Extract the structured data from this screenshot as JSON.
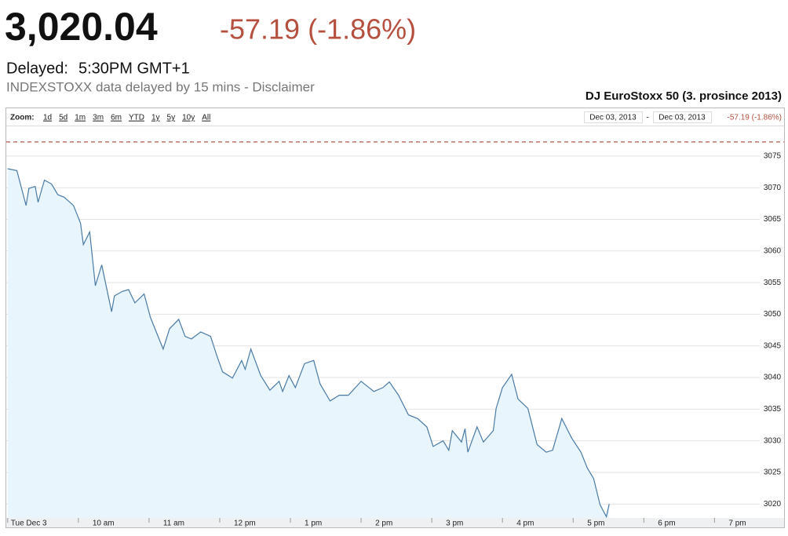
{
  "header": {
    "price": "3,020.04",
    "change": "-57.19 (-1.86%)",
    "delayed_label": "Delayed:",
    "delayed_time": "5:30PM GMT+1",
    "notice": "INDEXSTOXX data delayed by 15 mins - Disclaimer"
  },
  "chart_data": {
    "type": "line",
    "title": "DJ EuroStoxx 50 (3. prosince 2013)",
    "zoom_label": "Zoom:",
    "zoom_options": [
      "1d",
      "5d",
      "1m",
      "3m",
      "6m",
      "YTD",
      "1y",
      "5y",
      "10y",
      "All"
    ],
    "date_from": "Dec 03, 2013",
    "date_separator": "-",
    "date_to": "Dec 03, 2013",
    "range_change": "-57.19 (-1.86%)",
    "x": [
      9.0,
      9.13,
      9.26,
      9.3,
      9.39,
      9.43,
      9.52,
      9.62,
      9.71,
      9.8,
      9.93,
      10.03,
      10.07,
      10.16,
      10.24,
      10.33,
      10.47,
      10.51,
      10.62,
      10.71,
      10.8,
      10.93,
      11.02,
      11.2,
      11.29,
      11.42,
      11.51,
      11.6,
      11.73,
      11.87,
      11.96,
      12.04,
      12.18,
      12.31,
      12.36,
      12.44,
      12.58,
      12.71,
      12.84,
      12.89,
      12.98,
      13.07,
      13.2,
      13.33,
      13.42,
      13.56,
      13.69,
      13.82,
      14.0,
      14.18,
      14.31,
      14.4,
      14.53,
      14.67,
      14.8,
      14.93,
      15.02,
      15.16,
      15.24,
      15.29,
      15.42,
      15.47,
      15.51,
      15.64,
      15.73,
      15.87,
      15.91,
      16.0,
      16.13,
      16.22,
      16.36,
      16.49,
      16.62,
      16.71,
      16.84,
      16.98,
      17.11,
      17.2,
      17.29,
      17.38,
      17.47,
      17.51
    ],
    "values": [
      3073.0,
      3072.7,
      3067.2,
      3069.9,
      3070.2,
      3067.7,
      3071.2,
      3070.6,
      3068.9,
      3068.5,
      3067.2,
      3064.4,
      3061.0,
      3063.0,
      3054.5,
      3057.8,
      3050.4,
      3052.9,
      3053.6,
      3053.9,
      3051.8,
      3053.2,
      3049.5,
      3044.5,
      3047.7,
      3049.2,
      3046.5,
      3046.1,
      3047.2,
      3046.5,
      3043.4,
      3040.9,
      3039.9,
      3042.7,
      3041.3,
      3044.5,
      3040.3,
      3038.0,
      3039.4,
      3037.8,
      3040.3,
      3038.4,
      3042.2,
      3042.7,
      3039.0,
      3036.3,
      3037.2,
      3037.2,
      3039.4,
      3037.8,
      3038.4,
      3039.3,
      3037.2,
      3034.1,
      3033.5,
      3032.2,
      3029.1,
      3030.0,
      3028.5,
      3031.6,
      3029.8,
      3031.9,
      3028.2,
      3032.2,
      3029.8,
      3031.6,
      3035.1,
      3038.4,
      3040.5,
      3036.6,
      3035.1,
      3029.4,
      3028.2,
      3028.5,
      3033.5,
      3030.4,
      3028.2,
      3025.7,
      3024.0,
      3019.9,
      3018.0,
      3020.0
    ],
    "color": "#4a7ba6",
    "area_color": "#e8f5fc",
    "reference_line": 3077.23,
    "reference_color": "#b05a4a",
    "xlim": [
      8.98,
      19.64
    ],
    "xticks": [
      {
        "value": 9,
        "label": "Tue Dec 3"
      },
      {
        "value": 10,
        "label": "10 am"
      },
      {
        "value": 11,
        "label": "11 am"
      },
      {
        "value": 12,
        "label": "12 pm"
      },
      {
        "value": 13,
        "label": "1 pm"
      },
      {
        "value": 14,
        "label": "2 pm"
      },
      {
        "value": 15,
        "label": "3 pm"
      },
      {
        "value": 16,
        "label": "4 pm"
      },
      {
        "value": 17,
        "label": "5 pm"
      },
      {
        "value": 18,
        "label": "6 pm"
      },
      {
        "value": 19,
        "label": "7 pm"
      }
    ],
    "ylim": [
      3017.8,
      3079.7
    ],
    "yticks": [
      3020,
      3025,
      3030,
      3035,
      3040,
      3045,
      3050,
      3055,
      3060,
      3065,
      3070,
      3075
    ],
    "grid": true
  }
}
